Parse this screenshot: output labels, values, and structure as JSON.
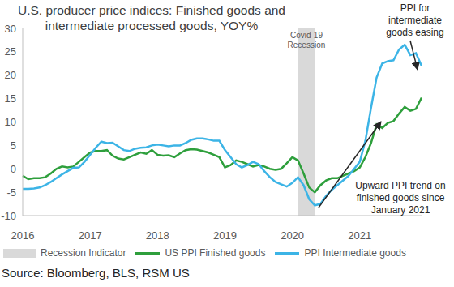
{
  "chart_data": {
    "type": "line",
    "title": "U.S. producer price indices: Finished goods and intermediate processed goods, YOY%",
    "source": "Source: Bloomberg, BLS, RSM US",
    "annotations": [
      "PPI for intermediate goods easing",
      "Upward PPI trend on finished goods since January 2021"
    ],
    "categories": [
      "2016",
      null,
      null,
      null,
      null,
      null,
      null,
      null,
      null,
      null,
      null,
      null,
      "2017",
      null,
      null,
      null,
      null,
      null,
      null,
      null,
      null,
      null,
      null,
      null,
      "2018",
      null,
      null,
      null,
      null,
      null,
      null,
      null,
      null,
      null,
      null,
      null,
      "2019",
      null,
      null,
      null,
      null,
      null,
      null,
      null,
      null,
      null,
      null,
      null,
      "2020",
      null,
      null,
      null,
      null,
      null,
      null,
      null,
      null,
      null,
      null,
      null,
      "2021",
      null,
      null,
      null,
      null,
      null,
      null,
      null,
      null,
      null,
      null,
      null
    ],
    "series": [
      {
        "name": "US PPI Finished goods",
        "color": "#2e9f3c",
        "values": [
          -1.5,
          -2.2,
          -2.0,
          -2.0,
          -1.8,
          -1.0,
          0,
          0.5,
          0.3,
          0.5,
          1.5,
          2.5,
          3.5,
          3.8,
          3.8,
          4.0,
          2.8,
          2.2,
          2.0,
          2.5,
          3.0,
          3.5,
          3.2,
          4.0,
          3.0,
          2.8,
          2.9,
          2.5,
          3.3,
          4.0,
          4.2,
          4.1,
          3.8,
          3.5,
          3.0,
          2.5,
          0.3,
          0.8,
          1.8,
          1.5,
          1.0,
          0.5,
          0.8,
          0.5,
          0,
          -0.2,
          0,
          1.2,
          2.5,
          1.8,
          -1.0,
          -4.0,
          -5.0,
          -3.5,
          -2.5,
          -2.0,
          -2.0,
          -1.5,
          -1.0,
          -0.5,
          0.3,
          2.5,
          5.5,
          9.5,
          8.7,
          9.8,
          10.2,
          11.8,
          13.2,
          12.4,
          12.8,
          15.2
        ]
      },
      {
        "name": "PPI Intermediate goods",
        "color": "#3cb4e6",
        "values": [
          -4.3,
          -4.3,
          -4.2,
          -4.0,
          -3.5,
          -2.8,
          -2.0,
          -1.2,
          -0.5,
          0.2,
          0.3,
          1.5,
          3.0,
          4.5,
          5.8,
          5.5,
          5.6,
          4.8,
          4.0,
          3.8,
          4.3,
          4.5,
          4.6,
          5.0,
          5.2,
          5.0,
          4.8,
          5.0,
          5.0,
          5.5,
          6.2,
          6.5,
          6.5,
          6.3,
          6.0,
          6.0,
          4.0,
          2.5,
          1.0,
          0.3,
          0.8,
          1.5,
          1.0,
          -0.5,
          -1.8,
          -2.8,
          -3.3,
          -3.8,
          -3.0,
          -1.8,
          -3.5,
          -6.5,
          -7.8,
          -7.5,
          -5.8,
          -4.5,
          -3.5,
          -2.5,
          -1.5,
          0,
          1.5,
          6.0,
          13.0,
          19.5,
          22.5,
          23.0,
          23.2,
          25.5,
          26.5,
          24.3,
          24.7,
          22.0
        ]
      }
    ],
    "recession": {
      "name": "Recession Indicator",
      "label": "Covid-19 Recession",
      "color": "#d9d9d9",
      "start": 49,
      "end": 52
    },
    "ylim": [
      -10,
      30
    ],
    "yticks": [
      -10,
      -5,
      0,
      5,
      10,
      15,
      20,
      25,
      30
    ],
    "grid": false,
    "legend": "bottom"
  }
}
